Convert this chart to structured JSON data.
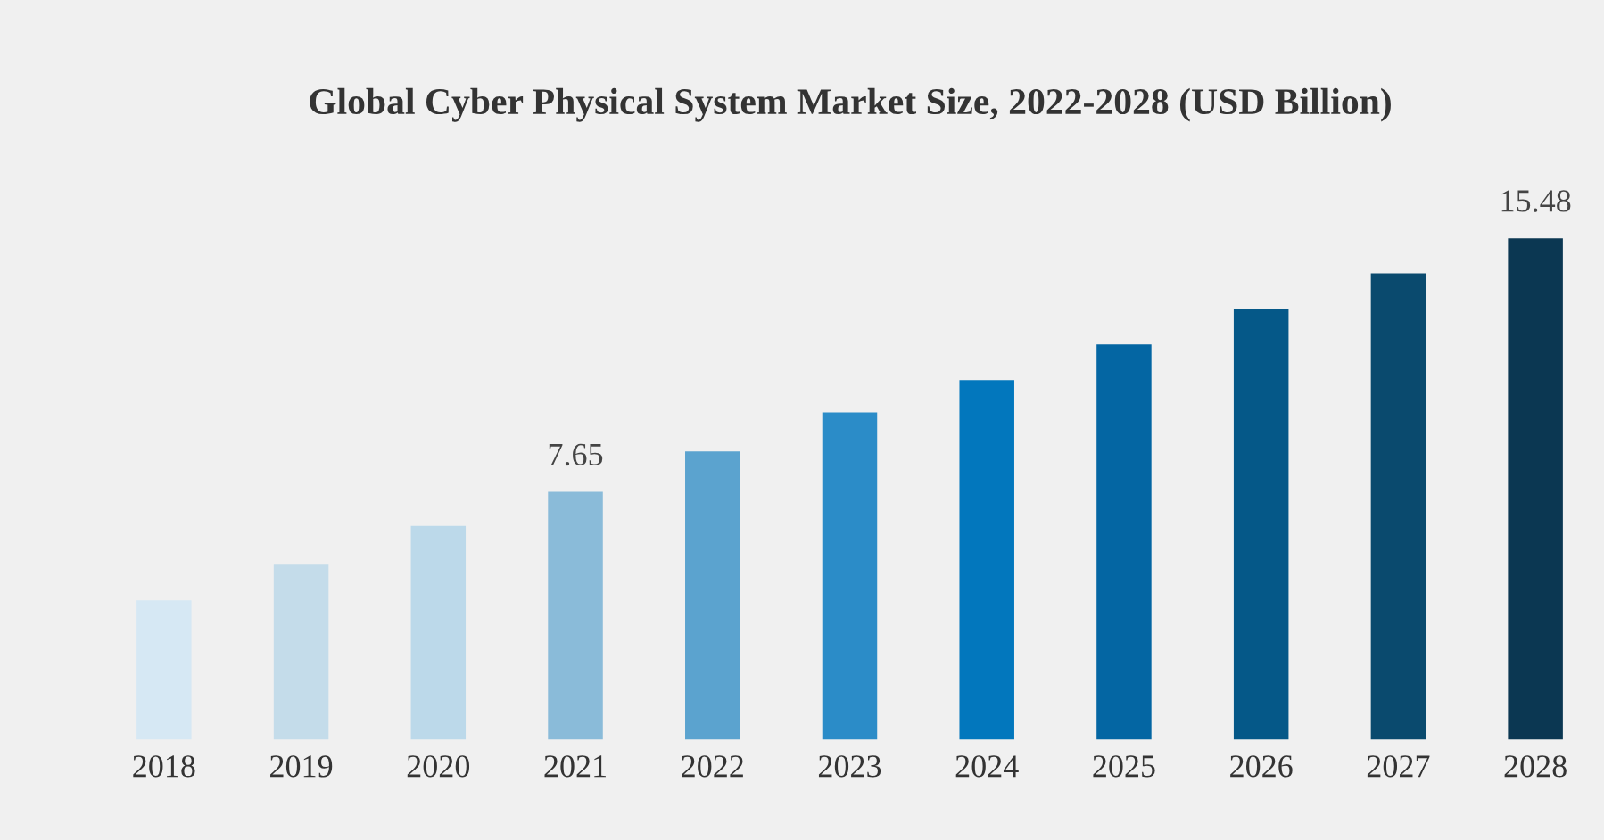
{
  "chart_data": {
    "type": "bar",
    "title": "Global Cyber Physical System Market Size, 2022-2028 (USD Billion)",
    "categories": [
      "2018",
      "2019",
      "2020",
      "2021",
      "2022",
      "2023",
      "2024",
      "2025",
      "2026",
      "2027",
      "2028"
    ],
    "values": [
      4.3,
      5.4,
      6.6,
      7.65,
      8.9,
      10.1,
      11.1,
      12.2,
      13.3,
      14.4,
      15.48
    ],
    "value_labels": [
      null,
      null,
      null,
      "7.65",
      null,
      null,
      null,
      null,
      null,
      null,
      "15.48"
    ],
    "colors": [
      "#d6e8f4",
      "#c4dcea",
      "#bcd9ea",
      "#8abbd9",
      "#5ba3cf",
      "#2b8cc8",
      "#0277bd",
      "#0466a3",
      "#055888",
      "#0a4a6e",
      "#0b3752"
    ],
    "tick_labels": "x",
    "grid": false,
    "legend": false
  }
}
